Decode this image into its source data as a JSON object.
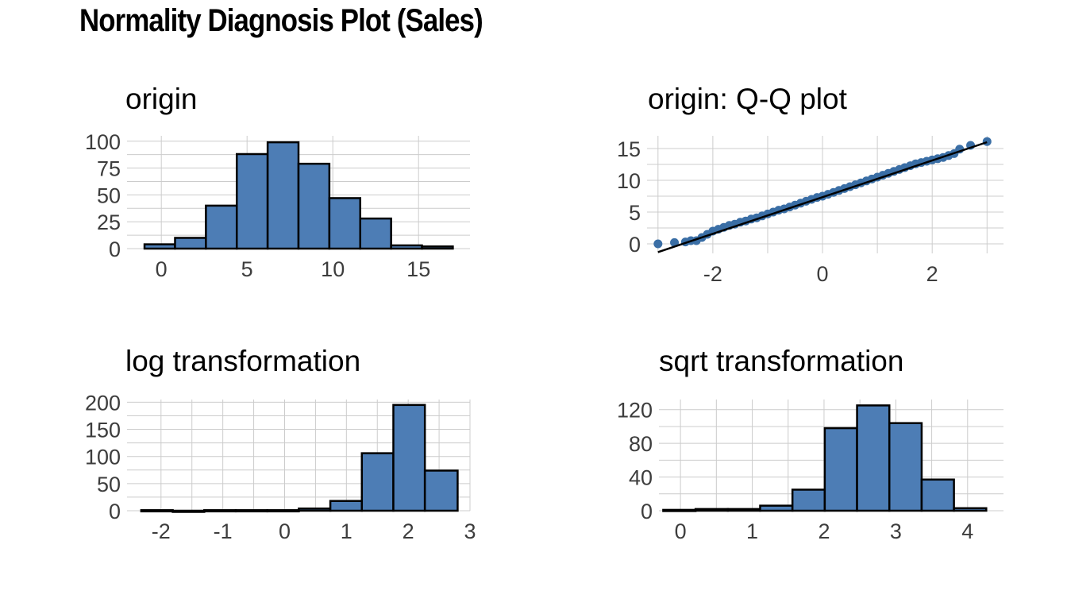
{
  "title": "Normality Diagnosis Plot (Sales)",
  "colors": {
    "fill": "#4d7db5",
    "stroke": "#000000",
    "point": "#3a6ea5",
    "grid": "#cccccc"
  },
  "chart_data": [
    {
      "id": "origin-hist",
      "type": "bar",
      "title": "origin",
      "xlim": [
        -2,
        18
      ],
      "ylim": [
        0,
        105
      ],
      "xticks": [
        0,
        5,
        10,
        15
      ],
      "xtick_labels": [
        "0",
        "5",
        "10",
        "15"
      ],
      "yticks": [
        0,
        25,
        50,
        75,
        100
      ],
      "ytick_labels": [
        "0",
        "25",
        "50",
        "75",
        "100"
      ],
      "bins": [
        {
          "x0": -0.98,
          "x1": 0.8,
          "value": 4
        },
        {
          "x0": 0.8,
          "x1": 2.6,
          "value": 10
        },
        {
          "x0": 2.6,
          "x1": 4.4,
          "value": 40
        },
        {
          "x0": 4.4,
          "x1": 6.2,
          "value": 88
        },
        {
          "x0": 6.2,
          "x1": 8.0,
          "value": 99
        },
        {
          "x0": 8.0,
          "x1": 9.8,
          "value": 79
        },
        {
          "x0": 9.8,
          "x1": 11.6,
          "value": 47
        },
        {
          "x0": 11.6,
          "x1": 13.4,
          "value": 28
        },
        {
          "x0": 13.4,
          "x1": 15.2,
          "value": 3
        },
        {
          "x0": 15.2,
          "x1": 17.0,
          "value": 2
        }
      ]
    },
    {
      "id": "origin-qq",
      "type": "scatter",
      "title": "origin: Q-Q plot",
      "xlim": [
        -3.2,
        3.3
      ],
      "ylim": [
        -1.5,
        17
      ],
      "xticks": [
        -2,
        0,
        2
      ],
      "xtick_labels": [
        "-2",
        "0",
        "2"
      ],
      "yticks": [
        0,
        5,
        10,
        15
      ],
      "ytick_labels": [
        "0",
        "5",
        "10",
        "15"
      ],
      "minor_xticks": [
        -3,
        -1,
        1,
        3
      ],
      "reference_line": [
        [
          -3.0,
          -1.3
        ],
        [
          3.0,
          16.0
        ]
      ],
      "points": [
        [
          -3.0,
          0.0
        ],
        [
          -2.7,
          0.2
        ],
        [
          -2.5,
          0.3
        ],
        [
          -2.4,
          0.5
        ],
        [
          -2.3,
          0.5
        ],
        [
          -2.2,
          1.0
        ],
        [
          -2.1,
          1.5
        ],
        [
          -2.0,
          2.0
        ],
        [
          -1.9,
          2.3
        ],
        [
          -1.8,
          2.6
        ],
        [
          -1.7,
          2.9
        ],
        [
          -1.6,
          3.1
        ],
        [
          -1.5,
          3.4
        ],
        [
          -1.4,
          3.6
        ],
        [
          -1.3,
          3.9
        ],
        [
          -1.2,
          4.1
        ],
        [
          -1.1,
          4.4
        ],
        [
          -1.0,
          4.7
        ],
        [
          -0.9,
          5.0
        ],
        [
          -0.8,
          5.3
        ],
        [
          -0.7,
          5.5
        ],
        [
          -0.6,
          5.8
        ],
        [
          -0.5,
          6.1
        ],
        [
          -0.4,
          6.4
        ],
        [
          -0.3,
          6.7
        ],
        [
          -0.2,
          7.0
        ],
        [
          -0.1,
          7.3
        ],
        [
          0.0,
          7.5
        ],
        [
          0.1,
          7.8
        ],
        [
          0.2,
          8.1
        ],
        [
          0.3,
          8.4
        ],
        [
          0.4,
          8.7
        ],
        [
          0.5,
          9.0
        ],
        [
          0.6,
          9.3
        ],
        [
          0.7,
          9.6
        ],
        [
          0.8,
          9.9
        ],
        [
          0.9,
          10.2
        ],
        [
          1.0,
          10.5
        ],
        [
          1.1,
          10.8
        ],
        [
          1.2,
          11.1
        ],
        [
          1.3,
          11.4
        ],
        [
          1.4,
          11.7
        ],
        [
          1.5,
          12.0
        ],
        [
          1.6,
          12.3
        ],
        [
          1.7,
          12.6
        ],
        [
          1.8,
          12.8
        ],
        [
          1.9,
          13.0
        ],
        [
          2.0,
          13.2
        ],
        [
          2.1,
          13.4
        ],
        [
          2.2,
          13.6
        ],
        [
          2.3,
          13.9
        ],
        [
          2.4,
          14.2
        ],
        [
          2.5,
          14.9
        ],
        [
          2.7,
          15.5
        ],
        [
          3.0,
          16.1
        ]
      ]
    },
    {
      "id": "log-hist",
      "type": "bar",
      "title": "log transformation",
      "xlim": [
        -2.55,
        3.0
      ],
      "ylim": [
        0,
        205
      ],
      "xticks": [
        -2,
        -1,
        0,
        1,
        2,
        3
      ],
      "xtick_labels": [
        "-2",
        "-1",
        "0",
        "1",
        "2",
        "3"
      ],
      "yticks": [
        0,
        50,
        100,
        150,
        200
      ],
      "ytick_labels": [
        "0",
        "50",
        "100",
        "150",
        "200"
      ],
      "minor_xticks": [
        -1.5,
        -0.5,
        0.5,
        1.5,
        2.5
      ],
      "bins": [
        {
          "x0": -2.32,
          "x1": -1.81,
          "value": 1
        },
        {
          "x0": -1.81,
          "x1": -1.3,
          "value": 0
        },
        {
          "x0": -1.3,
          "x1": -0.79,
          "value": 1
        },
        {
          "x0": -0.79,
          "x1": -0.28,
          "value": 1
        },
        {
          "x0": -0.28,
          "x1": 0.23,
          "value": 1
        },
        {
          "x0": 0.23,
          "x1": 0.74,
          "value": 4
        },
        {
          "x0": 0.74,
          "x1": 1.25,
          "value": 18
        },
        {
          "x0": 1.25,
          "x1": 1.76,
          "value": 106
        },
        {
          "x0": 1.76,
          "x1": 2.27,
          "value": 195
        },
        {
          "x0": 2.27,
          "x1": 2.8,
          "value": 74
        }
      ]
    },
    {
      "id": "sqrt-hist",
      "type": "bar",
      "title": "sqrt transformation",
      "xlim": [
        -0.3,
        4.5
      ],
      "ylim": [
        0,
        132
      ],
      "xticks": [
        0,
        1,
        2,
        3,
        4
      ],
      "xtick_labels": [
        "0",
        "1",
        "2",
        "3",
        "4"
      ],
      "yticks": [
        0,
        40,
        80,
        120
      ],
      "ytick_labels": [
        "0",
        "40",
        "80",
        "120"
      ],
      "minor_xticks": [
        0.5,
        1.5,
        2.5,
        3.5
      ],
      "bins": [
        {
          "x0": -0.24,
          "x1": 0.21,
          "value": 1
        },
        {
          "x0": 0.21,
          "x1": 0.66,
          "value": 2
        },
        {
          "x0": 0.66,
          "x1": 1.11,
          "value": 2
        },
        {
          "x0": 1.11,
          "x1": 1.56,
          "value": 6
        },
        {
          "x0": 1.56,
          "x1": 2.01,
          "value": 25
        },
        {
          "x0": 2.01,
          "x1": 2.46,
          "value": 98
        },
        {
          "x0": 2.46,
          "x1": 2.91,
          "value": 125
        },
        {
          "x0": 2.91,
          "x1": 3.36,
          "value": 104
        },
        {
          "x0": 3.36,
          "x1": 3.81,
          "value": 37
        },
        {
          "x0": 3.81,
          "x1": 4.26,
          "value": 3
        }
      ]
    }
  ]
}
